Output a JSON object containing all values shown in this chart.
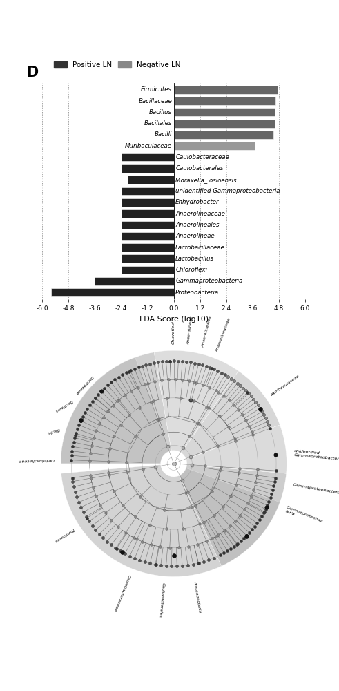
{
  "bar_labels": [
    "Firmicutes",
    "Bacillaceae",
    "Bacillus",
    "Bacillales",
    "Bacilli",
    "Muribaculaceae",
    "Caulobacteraceae",
    "Caulobacterales",
    "Moraxella_ osloensis",
    "unidentified Gammaproteobacteria",
    "Enhydrobacter",
    "Anaerolineaceae",
    "Anaerolineales",
    "Anaerolineae",
    "Lactobacillaceae",
    "Lactobacillus",
    "Chloroflexi",
    "Gammaproteobacteria",
    "Proteobacteria"
  ],
  "bar_values": [
    4.75,
    4.65,
    4.6,
    4.6,
    4.55,
    3.7,
    -2.4,
    -2.4,
    -2.1,
    -2.4,
    -2.4,
    -2.4,
    -2.4,
    -2.4,
    -2.4,
    -2.4,
    -2.4,
    -3.6,
    -5.6
  ],
  "bar_colors": [
    "#666666",
    "#666666",
    "#666666",
    "#666666",
    "#666666",
    "#999999",
    "#222222",
    "#222222",
    "#222222",
    "#222222",
    "#222222",
    "#222222",
    "#222222",
    "#222222",
    "#222222",
    "#222222",
    "#222222",
    "#222222",
    "#222222"
  ],
  "positive_color": "#333333",
  "negative_color": "#888888",
  "xlim": [
    -6.0,
    6.0
  ],
  "xticks": [
    -6.0,
    -4.8,
    -3.6,
    -2.4,
    -1.2,
    0.0,
    1.2,
    2.4,
    3.6,
    4.8,
    6.0
  ],
  "xlabel": "LDA Score (log10)",
  "panel_label": "D",
  "legend_positive": "Positive LN",
  "legend_negative": "Negative LN",
  "bg_color": "#ffffff"
}
